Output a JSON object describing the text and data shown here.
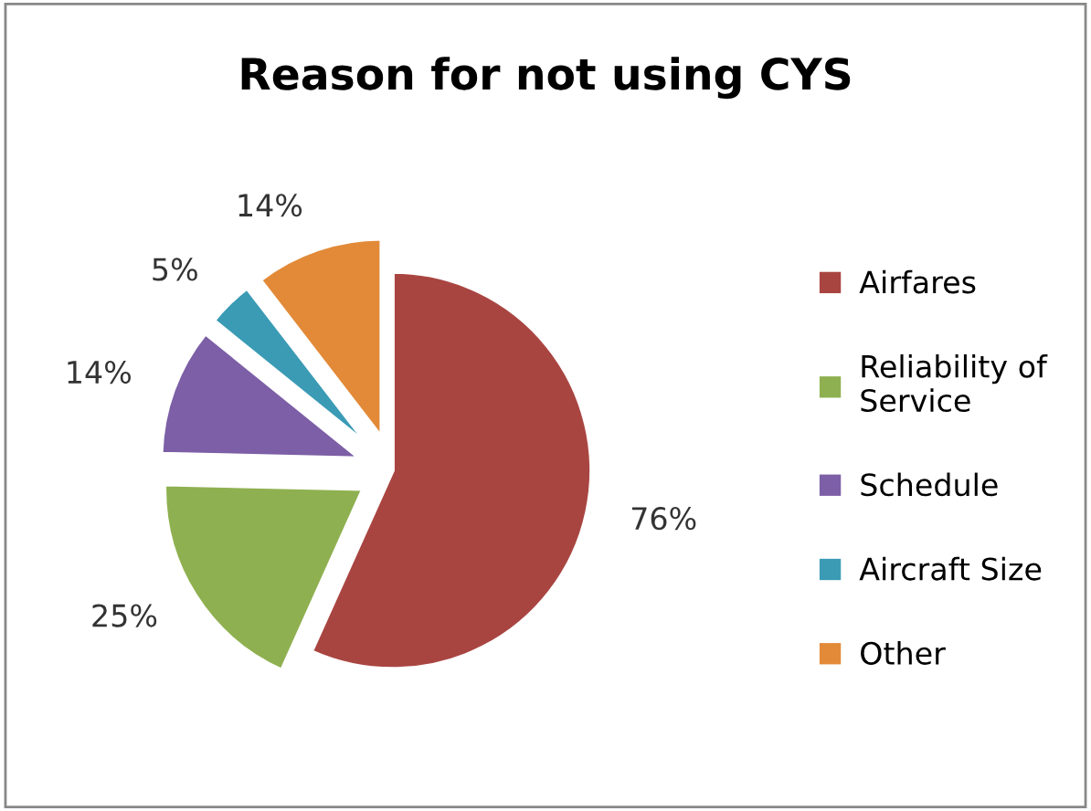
{
  "chart_data": {
    "type": "pie",
    "title": "Reason for not using CYS",
    "categories": [
      "Airfares",
      "Reliability of\nService",
      "Schedule",
      "Aircraft Size",
      "Other"
    ],
    "values": [
      76,
      25,
      14,
      5,
      14
    ],
    "value_labels": [
      "76%",
      "25%",
      "14%",
      "5%",
      "14%"
    ],
    "colors": [
      "#a94541",
      "#8fb050",
      "#7c5fa6",
      "#3b9bb5",
      "#e28a38"
    ],
    "legend": "right"
  }
}
